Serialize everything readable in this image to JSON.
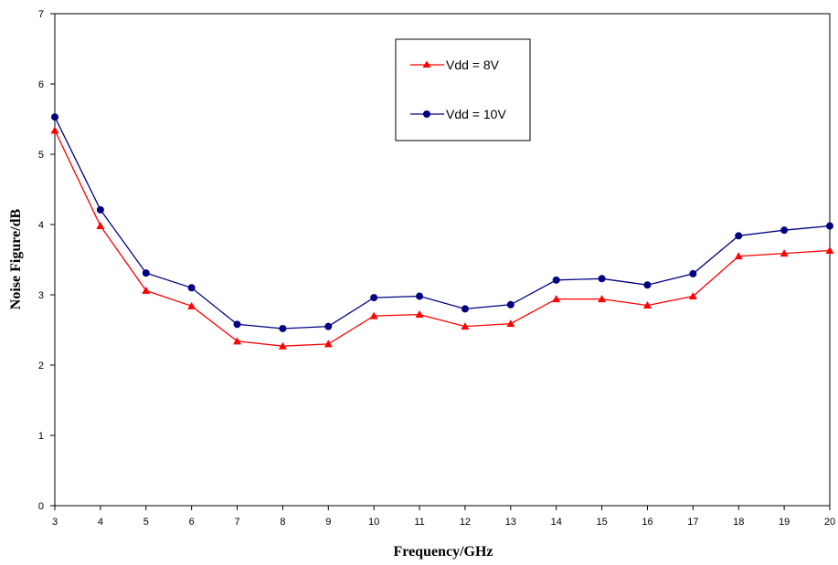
{
  "chart_data": {
    "type": "line",
    "xlabel": "Frequency/GHz",
    "ylabel": "Noise Figure/dB",
    "xlim": [
      3,
      20
    ],
    "ylim": [
      0,
      7
    ],
    "x_ticks": [
      3,
      4,
      5,
      6,
      7,
      8,
      9,
      10,
      11,
      12,
      13,
      14,
      15,
      16,
      17,
      18,
      19,
      20
    ],
    "y_ticks": [
      0,
      1,
      2,
      3,
      4,
      5,
      6,
      7
    ],
    "grid": true,
    "legend_position": "top-center",
    "x": [
      3,
      4,
      5,
      6,
      7,
      8,
      9,
      10,
      11,
      12,
      13,
      14,
      15,
      16,
      17,
      18,
      19,
      20
    ],
    "series": [
      {
        "name": "Vdd = 8V",
        "color": "#ff0000",
        "marker": "triangle",
        "values": [
          5.34,
          3.98,
          3.06,
          2.84,
          2.34,
          2.27,
          2.3,
          2.7,
          2.72,
          2.55,
          2.59,
          2.94,
          2.94,
          2.85,
          2.98,
          3.55,
          3.59,
          3.63
        ]
      },
      {
        "name": "Vdd = 10V",
        "color": "#000080",
        "marker": "circle",
        "values": [
          5.53,
          4.21,
          3.31,
          3.1,
          2.58,
          2.52,
          2.55,
          2.96,
          2.98,
          2.8,
          2.86,
          3.21,
          3.23,
          3.14,
          3.3,
          3.84,
          3.92,
          3.98
        ]
      }
    ]
  }
}
